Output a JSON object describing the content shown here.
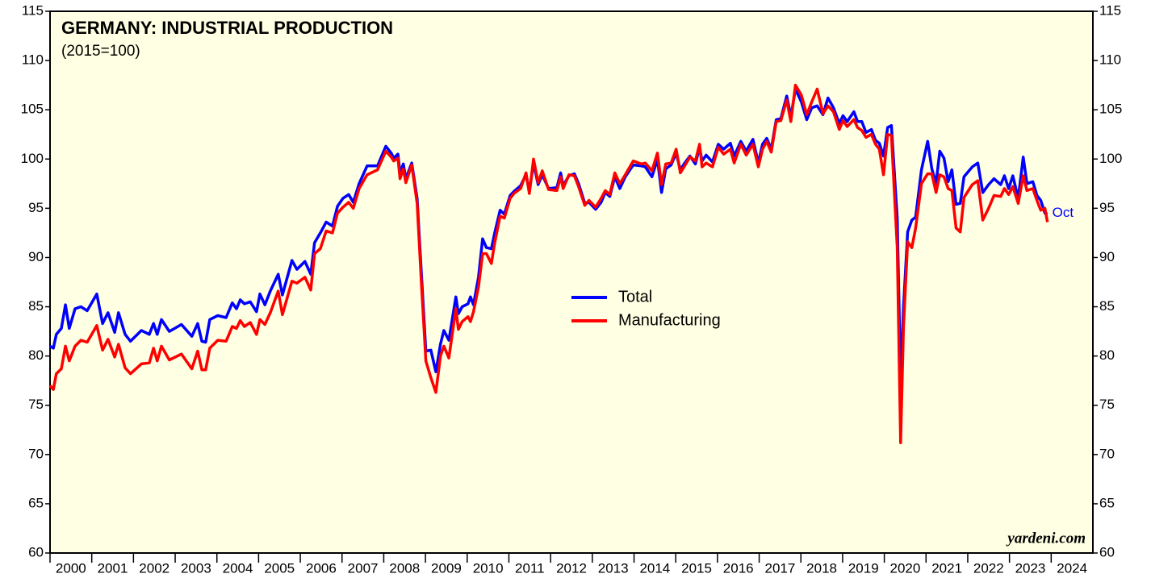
{
  "chart_data": {
    "type": "line",
    "title": "GERMANY: INDUSTRIAL PRODUCTION",
    "subtitle": "(2015=100)",
    "annotations": {
      "last_point": "Oct",
      "source": "yardeni.com"
    },
    "legend": "center",
    "xlim": [
      2000,
      2025
    ],
    "xticks": [
      2000,
      2001,
      2002,
      2003,
      2004,
      2005,
      2006,
      2007,
      2008,
      2009,
      2010,
      2011,
      2012,
      2013,
      2014,
      2015,
      2016,
      2017,
      2018,
      2019,
      2020,
      2021,
      2022,
      2023,
      2024
    ],
    "ylim": [
      60,
      115
    ],
    "yticks": [
      60,
      65,
      70,
      75,
      80,
      85,
      90,
      95,
      100,
      105,
      110,
      115
    ],
    "x": [
      2000.0,
      2000.08,
      2000.15,
      2000.27,
      2000.37,
      2000.46,
      2000.6,
      2000.74,
      2000.89,
      2001.12,
      2001.26,
      2001.39,
      2001.55,
      2001.64,
      2001.8,
      2001.93,
      2002.19,
      2002.38,
      2002.48,
      2002.57,
      2002.67,
      2002.86,
      2003.15,
      2003.4,
      2003.54,
      2003.64,
      2003.73,
      2003.83,
      2004.02,
      2004.22,
      2004.37,
      2004.47,
      2004.56,
      2004.66,
      2004.8,
      2004.95,
      2005.03,
      2005.15,
      2005.28,
      2005.47,
      2005.57,
      2005.8,
      2005.92,
      2006.11,
      2006.25,
      2006.34,
      2006.48,
      2006.62,
      2006.77,
      2006.89,
      2007.02,
      2007.16,
      2007.27,
      2007.41,
      2007.6,
      2007.85,
      2008.05,
      2008.18,
      2008.24,
      2008.34,
      2008.39,
      2008.47,
      2008.53,
      2008.67,
      2008.8,
      2008.9,
      2009.01,
      2009.13,
      2009.25,
      2009.36,
      2009.44,
      2009.56,
      2009.73,
      2009.79,
      2009.88,
      2010.02,
      2010.08,
      2010.15,
      2010.27,
      2010.37,
      2010.46,
      2010.58,
      2010.66,
      2010.79,
      2010.89,
      2011.03,
      2011.12,
      2011.28,
      2011.41,
      2011.49,
      2011.59,
      2011.7,
      2011.8,
      2011.95,
      2012.15,
      2012.24,
      2012.3,
      2012.44,
      2012.57,
      2012.67,
      2012.82,
      2012.92,
      2013.08,
      2013.21,
      2013.31,
      2013.42,
      2013.54,
      2013.66,
      2013.79,
      2013.98,
      2014.18,
      2014.27,
      2014.43,
      2014.56,
      2014.66,
      2014.76,
      2014.89,
      2015.01,
      2015.11,
      2015.2,
      2015.34,
      2015.47,
      2015.57,
      2015.63,
      2015.73,
      2015.88,
      2016.02,
      2016.15,
      2016.31,
      2016.4,
      2016.56,
      2016.69,
      2016.85,
      2016.98,
      2017.08,
      2017.18,
      2017.29,
      2017.41,
      2017.52,
      2017.66,
      2017.76,
      2017.87,
      2018.01,
      2018.14,
      2018.26,
      2018.39,
      2018.53,
      2018.65,
      2018.78,
      2018.92,
      2019.01,
      2019.11,
      2019.27,
      2019.36,
      2019.46,
      2019.56,
      2019.69,
      2019.79,
      2019.88,
      2019.98,
      2020.08,
      2020.17,
      2020.31,
      2020.39,
      2020.46,
      2020.56,
      2020.66,
      2020.75,
      2020.89,
      2021.04,
      2021.14,
      2021.24,
      2021.33,
      2021.43,
      2021.53,
      2021.62,
      2021.72,
      2021.82,
      2021.91,
      2022.11,
      2022.24,
      2022.36,
      2022.5,
      2022.63,
      2022.79,
      2022.88,
      2022.98,
      2023.08,
      2023.21,
      2023.33,
      2023.42,
      2023.56,
      2023.66,
      2023.75,
      2023.85,
      2023.91
    ],
    "series": [
      {
        "name": "Total",
        "color": "#0000ff",
        "values": [
          81,
          80.8,
          82.2,
          82.8,
          85.2,
          82.8,
          84.8,
          85,
          84.6,
          86.3,
          83.3,
          84.4,
          82.4,
          84.4,
          82.2,
          81.5,
          82.6,
          82.2,
          83.3,
          82.2,
          83.7,
          82.5,
          83.2,
          82,
          83.3,
          81.5,
          81.4,
          83.7,
          84.1,
          83.9,
          85.4,
          84.8,
          85.7,
          85.3,
          85.5,
          84.5,
          86.3,
          85.2,
          86.6,
          88.3,
          86.2,
          89.7,
          88.8,
          89.6,
          88.3,
          91.5,
          92.5,
          93.6,
          93.2,
          95.2,
          96.0,
          96.4,
          95.6,
          97.5,
          99.3,
          99.3,
          101.3,
          100.6,
          100.1,
          100.5,
          98.6,
          99.5,
          98.0,
          99.6,
          96,
          88.5,
          80.5,
          80.6,
          78.4,
          81.2,
          82.6,
          81.6,
          86.0,
          84.3,
          85,
          85.3,
          86.0,
          85.2,
          88,
          91.9,
          91.0,
          90.9,
          92.5,
          94.8,
          94.4,
          96.3,
          96.7,
          97.3,
          98.4,
          96.7,
          99.6,
          97.4,
          98.4,
          97,
          97.1,
          98.6,
          97.3,
          98.3,
          98.5,
          97.5,
          95.5,
          95.6,
          94.9,
          95.6,
          96.6,
          96.2,
          98.2,
          97.0,
          98.2,
          99.4,
          99.3,
          99.2,
          98.2,
          100.0,
          96.6,
          99.0,
          99.4,
          100.6,
          98.9,
          99.5,
          100.3,
          99.5,
          101.2,
          99.8,
          100.4,
          99.7,
          101.5,
          101.0,
          101.6,
          100.3,
          101.8,
          100.8,
          102.0,
          99.6,
          101.5,
          102.1,
          101.0,
          104.0,
          104.1,
          106.4,
          104.3,
          107.1,
          105.8,
          104.0,
          105.2,
          105.4,
          104.5,
          106.2,
          105.2,
          103.6,
          104.4,
          103.8,
          104.8,
          103.8,
          103.8,
          102.7,
          103.0,
          101.9,
          101.6,
          100.3,
          103.2,
          103.4,
          94,
          77.5,
          85,
          92.6,
          93.8,
          94.1,
          98.9,
          101.8,
          99.0,
          97.5,
          100.8,
          100.1,
          97.7,
          98.9,
          95.4,
          95.5,
          98.2,
          99.2,
          99.6,
          96.6,
          97.4,
          98.0,
          97.4,
          98.3,
          97.0,
          98.3,
          96.0,
          100.2,
          97.5,
          97.7,
          96.3,
          95.8,
          94.5,
          94.4
        ]
      },
      {
        "name": "Manufacturing",
        "color": "#ff0000",
        "values": [
          77,
          76.6,
          78.2,
          78.7,
          81.0,
          79.5,
          81.0,
          81.6,
          81.4,
          83.1,
          80.6,
          81.7,
          79.9,
          81.2,
          78.8,
          78.2,
          79.2,
          79.3,
          80.8,
          79.5,
          81.0,
          79.6,
          80.2,
          78.7,
          80.5,
          78.6,
          78.6,
          80.8,
          81.6,
          81.5,
          83.0,
          82.8,
          83.6,
          83.0,
          83.4,
          82.2,
          83.7,
          83.2,
          84.4,
          86.6,
          84.2,
          87.6,
          87.4,
          88.0,
          86.7,
          90.4,
          90.9,
          92.7,
          92.5,
          94.5,
          95.1,
          95.6,
          95.0,
          97.0,
          98.4,
          98.9,
          100.8,
          100.2,
          99.8,
          100.1,
          98.0,
          99.0,
          97.6,
          99.4,
          95.5,
          87.5,
          79.5,
          77.8,
          76.3,
          80.0,
          81.0,
          79.8,
          84.8,
          82.7,
          83.5,
          84.0,
          83.5,
          84.5,
          87,
          90.4,
          90.4,
          89.4,
          91.5,
          94.2,
          94.0,
          96.0,
          96.5,
          97.0,
          98.6,
          96.5,
          100.0,
          97.6,
          98.8,
          96.9,
          96.8,
          98.2,
          97.0,
          98.4,
          98.3,
          97.2,
          95.3,
          95.8,
          95.1,
          96.0,
          96.8,
          96.4,
          98.6,
          97.5,
          98.4,
          99.8,
          99.5,
          99.6,
          98.8,
          100.6,
          97.4,
          99.5,
          99.6,
          101.0,
          98.6,
          99.2,
          100.2,
          99.8,
          101.5,
          99.2,
          99.6,
          99.2,
          101.2,
          100.5,
          101.0,
          99.6,
          101.5,
          100.4,
          101.5,
          99.2,
          101.0,
          101.8,
          100.7,
          103.8,
          103.9,
          106.0,
          103.8,
          107.5,
          106.5,
          104.5,
          105.8,
          107.1,
          104.6,
          105.4,
          104.8,
          103.0,
          103.9,
          103.3,
          104.0,
          103.2,
          102.9,
          102.2,
          102.5,
          101.5,
          101.0,
          98.4,
          102.5,
          102.4,
          91,
          71.2,
          83,
          91.6,
          91.0,
          93.0,
          97.5,
          98.5,
          98.5,
          96.6,
          98.4,
          98.2,
          97.0,
          96.8,
          93.0,
          92.6,
          96.1,
          97.4,
          97.8,
          93.8,
          95.0,
          96.3,
          96.2,
          97.0,
          96.4,
          97.2,
          95.5,
          98.3,
          96.8,
          97.0,
          95.8,
          94.8,
          95.0,
          93.6
        ]
      }
    ]
  }
}
